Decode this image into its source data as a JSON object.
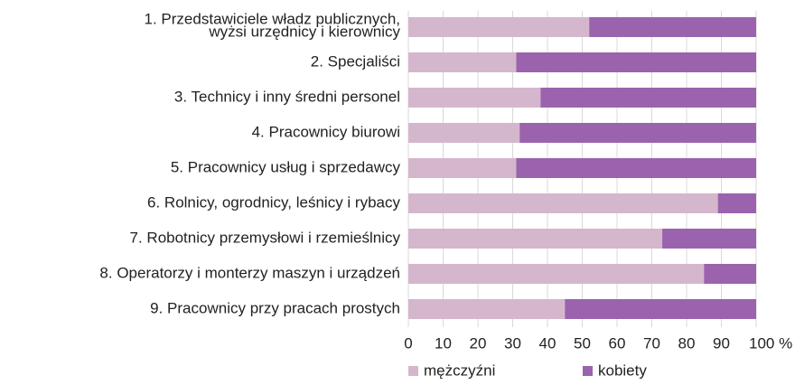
{
  "chart_data": {
    "type": "bar",
    "orientation": "horizontal",
    "stacked": true,
    "categories": [
      [
        "1. Przedstawiciele władz publicznych,",
        "wyżsi urzędnicy i kierownicy"
      ],
      "2. Specjaliści",
      "3. Technicy i inny średni personel",
      "4. Pracownicy biurowi",
      "5. Pracownicy usług i sprzedawcy",
      "6. Rolnicy, ogrodnicy, leśnicy i rybacy",
      "7. Robotnicy przemysłowi i rzemieślnicy",
      "8. Operatorzy i monterzy maszyn i urządzeń",
      "9. Pracownicy przy pracach prostych"
    ],
    "series": [
      {
        "name": "mężczyźni",
        "color": "#d4b7cc",
        "values": [
          52,
          31,
          38,
          32,
          31,
          89,
          73,
          85,
          45
        ]
      },
      {
        "name": "kobiety",
        "color": "#9b63ad",
        "values": [
          48,
          69,
          62,
          68,
          69,
          11,
          27,
          15,
          55
        ]
      }
    ],
    "xlim": [
      0,
      100
    ],
    "xticks": [
      0,
      10,
      20,
      30,
      40,
      50,
      60,
      70,
      80,
      90,
      {
        "value": 100,
        "label": "100 %"
      }
    ],
    "grid": true,
    "legend": "bottom"
  }
}
